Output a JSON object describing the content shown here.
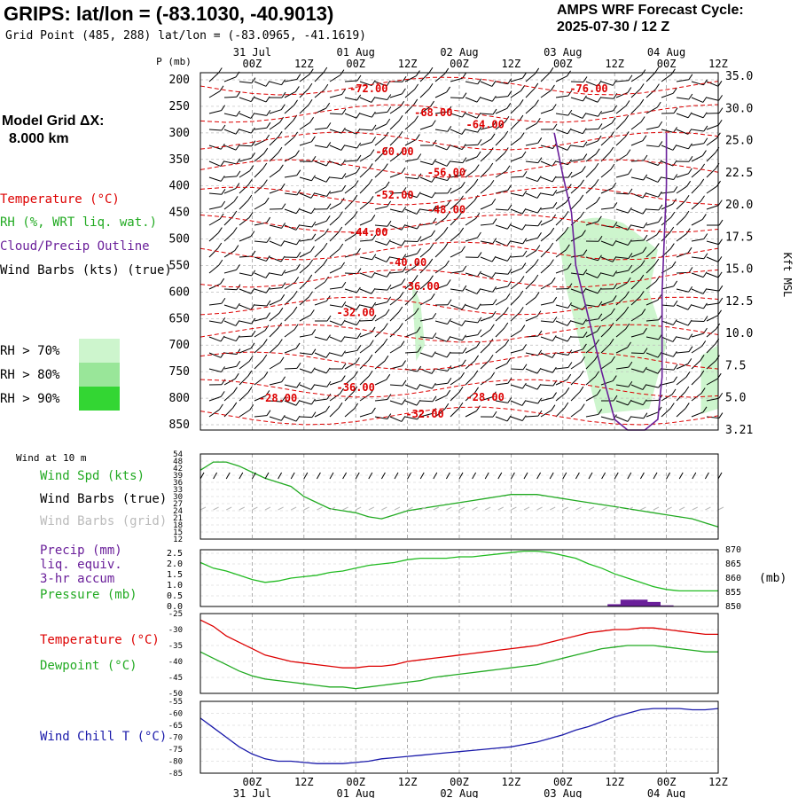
{
  "header": {
    "title": "GRIPS:  lat/lon = (-83.1030, -40.9013)",
    "subtitle": "Grid Point (485, 288) lat/lon = (-83.0965, -41.1619)",
    "cycle_line1": "AMPS WRF Forecast Cycle:",
    "cycle_line2": "2025-07-30 / 12  Z"
  },
  "sidebar": {
    "grid_label": "Model Grid ΔX:",
    "grid_value": "8.000 km",
    "legend": {
      "temperature": "Temperature (°C)",
      "rh": "RH (%, WRT liq. wat.)",
      "cloud": "Cloud/Precip Outline",
      "wind": "Wind Barbs (kts) (true)"
    },
    "rh_shading": [
      {
        "label": "RH > 70%",
        "color": "#cdf5cd"
      },
      {
        "label": "RH > 80%",
        "color": "#99e699"
      },
      {
        "label": "RH > 90%",
        "color": "#33d633"
      }
    ],
    "wind10m_label": "Wind at 10 m",
    "wind_panel": {
      "spd": "Wind Spd (kts)",
      "barbs_true": "Wind Barbs (true)",
      "barbs_grid": "Wind Barbs (grid)"
    },
    "precip_panel": {
      "l1": "Precip (mm)",
      "l2": "liq. equiv.",
      "l3": "3-hr accum",
      "l4": "Pressure (mb)"
    },
    "temp_panel": {
      "l1": "Temperature (°C)",
      "l2": "Dewpoint (°C)"
    },
    "chill_panel": {
      "l1": "Wind Chill T (°C)"
    }
  },
  "colors": {
    "temperature": "#dd0000",
    "rh": "#22aa22",
    "cloud": "#6a1f9a",
    "wind": "#000000",
    "pressure": "#22bb22",
    "precip": "#6a1f9a",
    "windchill": "#1a1aaa",
    "grid_barb": "#bbbbbb"
  },
  "time_axis": {
    "ticks": [
      "00Z",
      "12Z",
      "00Z",
      "12Z",
      "00Z",
      "12Z",
      "00Z",
      "12Z",
      "00Z",
      "12Z"
    ],
    "tick_hours": [
      12,
      24,
      36,
      48,
      60,
      72,
      84,
      96,
      108,
      120
    ],
    "dates": [
      "31 Jul",
      "01 Aug",
      "02 Aug",
      "03 Aug",
      "04 Aug"
    ],
    "date_hours": [
      12,
      36,
      60,
      84,
      108
    ],
    "hour_range": [
      0,
      120
    ]
  },
  "chart_data": [
    {
      "type": "line",
      "panel": "cross-section",
      "ylabel": "P (mb)",
      "y2label": "Kft MSL",
      "yticks": [
        "200",
        "250",
        "300",
        "350",
        "400",
        "450",
        "500",
        "550",
        "600",
        "650",
        "700",
        "750",
        "800",
        "850"
      ],
      "y2ticks": [
        "35.0",
        "30.0",
        "25.0",
        "22.5",
        "20.0",
        "17.5",
        "15.0",
        "12.5",
        "10.0",
        "7.5",
        "5.0",
        "3.21"
      ],
      "ylim": [
        200,
        860
      ],
      "temperature_labels": [
        {
          "text": "-72.00",
          "hour": 39,
          "p": 217
        },
        {
          "text": "-76.00",
          "hour": 90,
          "p": 217
        },
        {
          "text": "-68.00",
          "hour": 54,
          "p": 262
        },
        {
          "text": "-64.00",
          "hour": 66,
          "p": 284
        },
        {
          "text": "-60.00",
          "hour": 45,
          "p": 335
        },
        {
          "text": "-56.00",
          "hour": 57,
          "p": 375
        },
        {
          "text": "-52.00",
          "hour": 45,
          "p": 417
        },
        {
          "text": "-48.00",
          "hour": 57,
          "p": 445
        },
        {
          "text": "-44.00",
          "hour": 39,
          "p": 487
        },
        {
          "text": "-40.00",
          "hour": 48,
          "p": 544
        },
        {
          "text": "-36.00",
          "hour": 51,
          "p": 589
        },
        {
          "text": "-32.00",
          "hour": 36,
          "p": 639
        },
        {
          "text": "-36.00",
          "hour": 36,
          "p": 780
        },
        {
          "text": "-28.00",
          "hour": 18,
          "p": 800
        },
        {
          "text": "-28.00",
          "hour": 66,
          "p": 798
        },
        {
          "text": "-32.00",
          "hour": 52,
          "p": 830
        }
      ],
      "cloud_outline": {
        "hours": [
          82,
          84,
          86,
          87,
          90,
          93,
          96,
          99,
          103,
          106,
          107,
          107,
          108,
          108
        ],
        "p": [
          300,
          380,
          450,
          550,
          650,
          750,
          840,
          860,
          860,
          840,
          760,
          600,
          400,
          300
        ]
      }
    },
    {
      "type": "line",
      "panel": "wind10m",
      "series": [
        {
          "name": "Wind Spd (kts)",
          "x": [
            0,
            3,
            6,
            9,
            12,
            15,
            18,
            21,
            24,
            27,
            30,
            33,
            36,
            39,
            42,
            45,
            48,
            51,
            54,
            57,
            60,
            63,
            66,
            69,
            72,
            75,
            78,
            81,
            84,
            87,
            90,
            93,
            96,
            99,
            102,
            105,
            108,
            111,
            114,
            117,
            120
          ],
          "values": [
            46,
            50,
            50,
            48,
            45,
            42,
            40,
            38,
            33,
            30,
            27,
            26,
            25,
            23,
            22,
            24,
            26,
            27,
            28,
            29,
            30,
            31,
            32,
            33,
            34,
            34,
            34,
            33,
            32,
            31,
            30,
            29,
            28,
            27,
            26,
            25,
            24,
            23,
            22,
            20,
            18
          ]
        }
      ],
      "yticks": [
        "54",
        "48",
        "42",
        "39",
        "36",
        "33",
        "30",
        "27",
        "24",
        "21",
        "18",
        "15",
        "12"
      ],
      "ylim": [
        12,
        54
      ]
    },
    {
      "type": "line",
      "panel": "precip-pressure",
      "series": [
        {
          "name": "Pressure (mb)",
          "x": [
            0,
            3,
            6,
            9,
            12,
            15,
            18,
            21,
            24,
            27,
            30,
            33,
            36,
            39,
            42,
            45,
            48,
            51,
            54,
            57,
            60,
            63,
            66,
            69,
            72,
            75,
            78,
            81,
            84,
            87,
            90,
            93,
            96,
            99,
            102,
            105,
            108,
            111,
            114,
            117,
            120
          ],
          "values": [
            865.5,
            863.5,
            862.5,
            861.0,
            859.5,
            858.5,
            859.0,
            860.0,
            860.5,
            861.0,
            862.0,
            862.5,
            863.5,
            864.5,
            865.0,
            865.5,
            866.5,
            867.0,
            867.0,
            867.0,
            867.5,
            867.5,
            868.0,
            868.5,
            869.0,
            869.5,
            869.5,
            869.0,
            868.0,
            867.0,
            865.0,
            863.5,
            861.5,
            860.0,
            858.5,
            857.0,
            856.0,
            855.5,
            855.5,
            855.5,
            855.5
          ]
        },
        {
          "name": "Precip (mm)",
          "x": [
            96,
            99,
            102,
            105,
            108
          ],
          "values": [
            0.1,
            0.3,
            0.3,
            0.2,
            0.05
          ]
        }
      ],
      "yticks_left": [
        "2.5",
        "2.0",
        "1.5",
        "1.0",
        "0.5",
        "0.0"
      ],
      "yticks_right": [
        "870",
        "865",
        "860",
        "855",
        "850"
      ],
      "ylim_left": [
        0,
        2.5
      ],
      "ylim_right": [
        850,
        870
      ],
      "y2unit": "(mb)"
    },
    {
      "type": "line",
      "panel": "temperature",
      "series": [
        {
          "name": "Temperature (°C)",
          "x": [
            0,
            3,
            6,
            9,
            12,
            15,
            18,
            21,
            24,
            27,
            30,
            33,
            36,
            39,
            42,
            45,
            48,
            51,
            54,
            57,
            60,
            63,
            66,
            69,
            72,
            75,
            78,
            81,
            84,
            87,
            90,
            93,
            96,
            99,
            102,
            105,
            108,
            111,
            114,
            117,
            120
          ],
          "values": [
            -27,
            -29,
            -32,
            -34,
            -36,
            -38,
            -39,
            -40,
            -40.5,
            -41,
            -41.5,
            -42,
            -42,
            -41.5,
            -41.5,
            -41,
            -40,
            -39.5,
            -39,
            -38.5,
            -38,
            -37.5,
            -37,
            -36.5,
            -36,
            -35.5,
            -35,
            -34,
            -33,
            -32,
            -31,
            -30.5,
            -30,
            -30,
            -29.5,
            -29.5,
            -30,
            -30.5,
            -31,
            -31.5,
            -31.5
          ]
        },
        {
          "name": "Dewpoint (°C)",
          "x": [
            0,
            3,
            6,
            9,
            12,
            15,
            18,
            21,
            24,
            27,
            30,
            33,
            36,
            39,
            42,
            45,
            48,
            51,
            54,
            57,
            60,
            63,
            66,
            69,
            72,
            75,
            78,
            81,
            84,
            87,
            90,
            93,
            96,
            99,
            102,
            105,
            108,
            111,
            114,
            117,
            120
          ],
          "values": [
            -37,
            -39,
            -41,
            -43,
            -44.5,
            -45.5,
            -46,
            -46.5,
            -47,
            -47.5,
            -48,
            -48,
            -48.5,
            -48,
            -47.5,
            -47,
            -46.5,
            -46,
            -45,
            -44.5,
            -44,
            -43.5,
            -43,
            -42.5,
            -42,
            -41.5,
            -41,
            -40,
            -39,
            -38,
            -37,
            -36,
            -35.5,
            -35,
            -35,
            -35,
            -35.5,
            -36,
            -36.5,
            -37,
            -37
          ]
        }
      ],
      "yticks": [
        "-25",
        "-30",
        "-35",
        "-40",
        "-45",
        "-50"
      ],
      "ylim": [
        -50,
        -25
      ]
    },
    {
      "type": "line",
      "panel": "windchill",
      "series": [
        {
          "name": "Wind Chill T (°C)",
          "x": [
            0,
            3,
            6,
            9,
            12,
            15,
            18,
            21,
            24,
            27,
            30,
            33,
            36,
            39,
            42,
            45,
            48,
            51,
            54,
            57,
            60,
            63,
            66,
            69,
            72,
            75,
            78,
            81,
            84,
            87,
            90,
            93,
            96,
            99,
            102,
            105,
            108,
            111,
            114,
            117,
            120
          ],
          "values": [
            -62,
            -66,
            -70,
            -74,
            -77,
            -79,
            -80,
            -80,
            -80.5,
            -81,
            -81,
            -81,
            -80.5,
            -80,
            -79,
            -78.5,
            -78,
            -77.5,
            -77,
            -76.5,
            -76,
            -75.5,
            -75,
            -74.5,
            -74,
            -73,
            -72,
            -70.5,
            -69,
            -67,
            -65.5,
            -63.5,
            -61.5,
            -60,
            -58.5,
            -58,
            -58,
            -58,
            -58.5,
            -58.5,
            -58
          ]
        }
      ],
      "yticks": [
        "-55",
        "-60",
        "-65",
        "-70",
        "-75",
        "-80",
        "-85"
      ],
      "ylim": [
        -85,
        -55
      ]
    }
  ]
}
